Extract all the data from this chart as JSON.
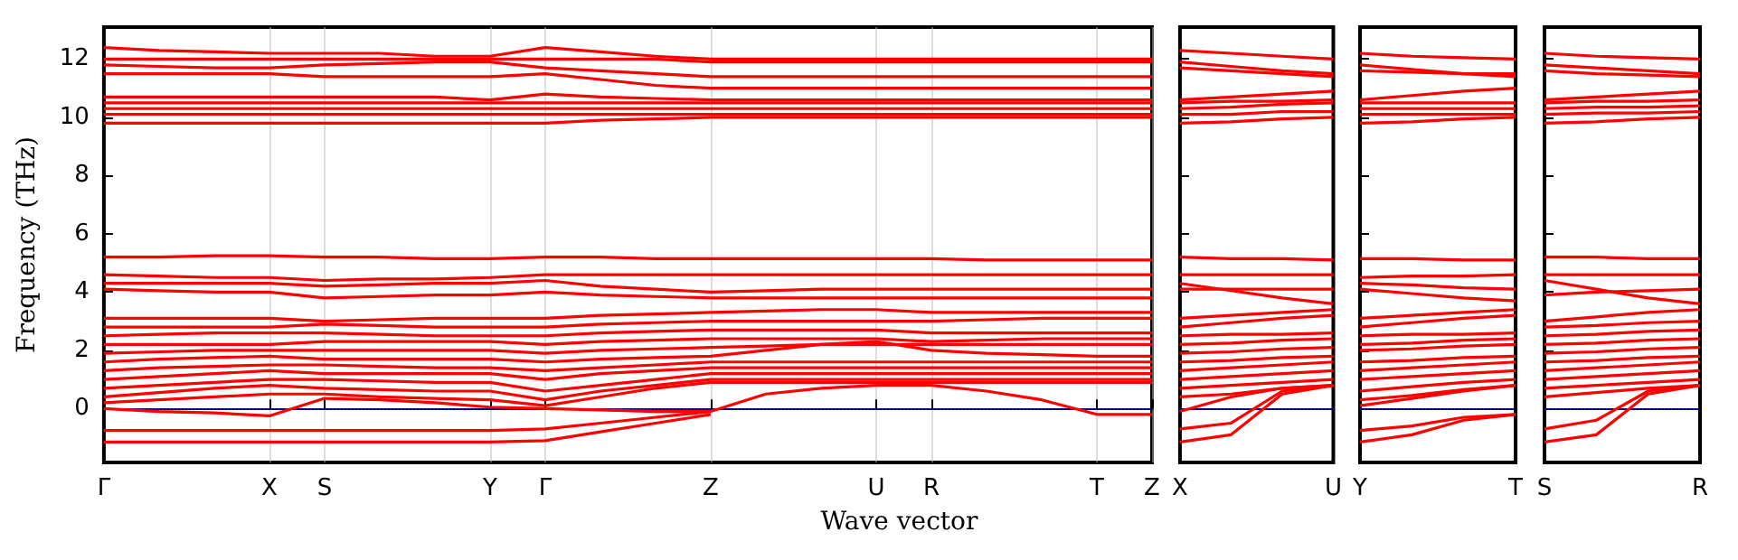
{
  "chart_data": [
    {
      "type": "line",
      "xlabel": "Wave vector",
      "ylabel": "Frequency (THz)",
      "grid": "x",
      "marker": "none",
      "categories": [
        "Γ",
        null,
        null,
        "X",
        "S",
        null,
        null,
        "Y",
        "Γ",
        null,
        null,
        "Z",
        null,
        null,
        "U",
        "R",
        null,
        null,
        "T",
        "Z"
      ],
      "ylim": [
        -1.85,
        13.1
      ],
      "yticks": [
        0,
        2,
        4,
        6,
        8,
        10,
        12
      ],
      "ref_lines": [
        {
          "axis": "y",
          "value": 0,
          "label": null,
          "color": "#0000ff",
          "line_style": "dotted"
        }
      ],
      "series": [
        {
          "color": "#ff0000",
          "values": [
            12.4,
            12.3,
            12.25,
            12.2,
            12.2,
            12.2,
            12.1,
            12.1,
            12.4,
            12.25,
            12.1,
            12.0,
            12.0,
            12.0,
            12.0,
            12.0,
            12.0,
            12.0,
            12.0,
            12.0
          ]
        },
        {
          "color": "#ff0000",
          "values": [
            12.0,
            12.0,
            12.0,
            12.0,
            12.0,
            12.0,
            12.0,
            12.0,
            12.0,
            12.0,
            12.0,
            11.9,
            11.9,
            11.9,
            11.9,
            11.9,
            11.9,
            11.9,
            11.9,
            11.9
          ]
        },
        {
          "color": "#ff0000",
          "values": [
            11.8,
            11.75,
            11.7,
            11.7,
            11.8,
            11.85,
            11.9,
            11.9,
            11.7,
            11.6,
            11.5,
            11.4,
            11.4,
            11.4,
            11.4,
            11.4,
            11.4,
            11.4,
            11.4,
            11.4
          ]
        },
        {
          "color": "#ff0000",
          "values": [
            11.5,
            11.5,
            11.5,
            11.5,
            11.4,
            11.4,
            11.4,
            11.4,
            11.5,
            11.3,
            11.1,
            11.0,
            11.0,
            11.0,
            11.0,
            11.0,
            11.0,
            11.0,
            11.0,
            11.0
          ]
        },
        {
          "color": "#ff0000",
          "values": [
            10.7,
            10.7,
            10.7,
            10.7,
            10.7,
            10.7,
            10.7,
            10.6,
            10.8,
            10.7,
            10.65,
            10.6,
            10.6,
            10.6,
            10.6,
            10.6,
            10.6,
            10.6,
            10.6,
            10.6
          ]
        },
        {
          "color": "#ff0000",
          "values": [
            10.5,
            10.5,
            10.5,
            10.5,
            10.5,
            10.5,
            10.5,
            10.5,
            10.5,
            10.5,
            10.5,
            10.5,
            10.5,
            10.5,
            10.5,
            10.5,
            10.5,
            10.5,
            10.5,
            10.5
          ]
        },
        {
          "color": "#ff0000",
          "values": [
            10.3,
            10.3,
            10.3,
            10.3,
            10.3,
            10.3,
            10.3,
            10.3,
            10.3,
            10.3,
            10.3,
            10.3,
            10.3,
            10.3,
            10.3,
            10.3,
            10.3,
            10.3,
            10.3,
            10.3
          ]
        },
        {
          "color": "#ff0000",
          "values": [
            10.1,
            10.1,
            10.1,
            10.1,
            10.1,
            10.1,
            10.1,
            10.1,
            10.1,
            10.1,
            10.1,
            10.1,
            10.1,
            10.1,
            10.1,
            10.1,
            10.1,
            10.1,
            10.1,
            10.1
          ]
        },
        {
          "color": "#ff0000",
          "values": [
            9.8,
            9.8,
            9.8,
            9.8,
            9.8,
            9.8,
            9.8,
            9.8,
            9.8,
            9.9,
            9.95,
            10.0,
            10.0,
            10.0,
            10.0,
            10.0,
            10.0,
            10.0,
            10.0,
            10.0
          ]
        },
        {
          "color": "#ff0000",
          "values": [
            5.2,
            5.2,
            5.25,
            5.25,
            5.2,
            5.2,
            5.15,
            5.15,
            5.2,
            5.2,
            5.15,
            5.15,
            5.15,
            5.15,
            5.15,
            5.15,
            5.1,
            5.1,
            5.1,
            5.1
          ]
        },
        {
          "color": "#ff0000",
          "values": [
            4.6,
            4.55,
            4.5,
            4.5,
            4.4,
            4.45,
            4.45,
            4.5,
            4.6,
            4.6,
            4.6,
            4.6,
            4.6,
            4.6,
            4.6,
            4.6,
            4.6,
            4.6,
            4.6,
            4.6
          ]
        },
        {
          "color": "#ff0000",
          "values": [
            4.3,
            4.3,
            4.3,
            4.3,
            4.2,
            4.25,
            4.3,
            4.3,
            4.4,
            4.2,
            4.1,
            4.0,
            4.05,
            4.1,
            4.1,
            4.1,
            4.1,
            4.1,
            4.1,
            4.1
          ]
        },
        {
          "color": "#ff0000",
          "values": [
            4.1,
            4.05,
            4.0,
            4.0,
            3.8,
            3.85,
            3.9,
            3.9,
            4.0,
            3.9,
            3.85,
            3.8,
            3.8,
            3.8,
            3.8,
            3.8,
            3.8,
            3.8,
            3.8,
            3.8
          ]
        },
        {
          "color": "#ff0000",
          "values": [
            3.1,
            3.1,
            3.1,
            3.1,
            3.0,
            3.05,
            3.1,
            3.1,
            3.1,
            3.2,
            3.25,
            3.3,
            3.35,
            3.4,
            3.4,
            3.3,
            3.3,
            3.3,
            3.3,
            3.3
          ]
        },
        {
          "color": "#ff0000",
          "values": [
            2.8,
            2.8,
            2.8,
            2.8,
            2.9,
            2.85,
            2.8,
            2.8,
            2.8,
            2.9,
            2.95,
            3.0,
            3.0,
            3.0,
            3.0,
            3.0,
            3.05,
            3.1,
            3.1,
            3.1
          ]
        },
        {
          "color": "#ff0000",
          "values": [
            2.5,
            2.55,
            2.6,
            2.6,
            2.6,
            2.55,
            2.5,
            2.5,
            2.5,
            2.6,
            2.65,
            2.7,
            2.7,
            2.7,
            2.7,
            2.6,
            2.6,
            2.6,
            2.6,
            2.6
          ]
        },
        {
          "color": "#ff0000",
          "values": [
            2.2,
            2.2,
            2.2,
            2.2,
            2.3,
            2.3,
            2.3,
            2.3,
            2.2,
            2.3,
            2.35,
            2.4,
            2.4,
            2.4,
            2.4,
            2.3,
            2.35,
            2.4,
            2.4,
            2.4
          ]
        },
        {
          "color": "#ff0000",
          "values": [
            1.9,
            1.95,
            2.0,
            2.0,
            2.0,
            2.0,
            2.0,
            2.0,
            1.9,
            2.0,
            2.05,
            2.1,
            2.15,
            2.2,
            2.2,
            2.2,
            2.2,
            2.2,
            2.2,
            2.2
          ]
        },
        {
          "color": "#ff0000",
          "values": [
            1.6,
            1.7,
            1.75,
            1.8,
            1.7,
            1.7,
            1.7,
            1.7,
            1.6,
            1.7,
            1.75,
            1.8,
            2.0,
            2.2,
            2.3,
            2.0,
            1.9,
            1.85,
            1.8,
            1.8
          ]
        },
        {
          "color": "#ff0000",
          "values": [
            1.3,
            1.4,
            1.45,
            1.5,
            1.5,
            1.45,
            1.4,
            1.4,
            1.3,
            1.4,
            1.5,
            1.6,
            1.6,
            1.6,
            1.6,
            1.6,
            1.6,
            1.6,
            1.6,
            1.6
          ]
        },
        {
          "color": "#ff0000",
          "values": [
            1.0,
            1.1,
            1.2,
            1.3,
            1.2,
            1.2,
            1.2,
            1.2,
            1.0,
            1.2,
            1.3,
            1.4,
            1.4,
            1.4,
            1.4,
            1.4,
            1.4,
            1.4,
            1.4,
            1.4
          ]
        },
        {
          "color": "#ff0000",
          "values": [
            0.7,
            0.8,
            0.9,
            1.0,
            1.0,
            0.95,
            0.9,
            0.9,
            0.6,
            0.8,
            1.0,
            1.2,
            1.2,
            1.2,
            1.2,
            1.2,
            1.2,
            1.2,
            1.2,
            1.2
          ]
        },
        {
          "color": "#ff0000",
          "values": [
            0.4,
            0.55,
            0.7,
            0.8,
            0.7,
            0.65,
            0.6,
            0.6,
            0.3,
            0.6,
            0.8,
            1.0,
            1.0,
            1.0,
            1.0,
            1.0,
            1.0,
            1.0,
            1.0,
            1.0
          ]
        },
        {
          "color": "#ff0000",
          "values": [
            0.2,
            0.3,
            0.4,
            0.5,
            0.5,
            0.4,
            0.35,
            0.3,
            0.1,
            0.4,
            0.7,
            0.9,
            0.9,
            0.9,
            0.9,
            0.9,
            0.9,
            0.9,
            0.9,
            0.9
          ]
        },
        {
          "color": "#ff0000",
          "values": [
            0,
            -0.1,
            -0.15,
            -0.25,
            0.35,
            0.3,
            0.2,
            0.05,
            0,
            -0.05,
            -0.1,
            -0.1,
            0.5,
            0.7,
            0.8,
            0.8,
            0.6,
            0.3,
            -0.2,
            -0.2
          ]
        },
        {
          "color": "#ff0000",
          "values": [
            -0.75,
            -0.75,
            -0.75,
            -0.75,
            -0.75,
            -0.75,
            -0.75,
            -0.75,
            -0.7,
            -0.5,
            -0.3,
            -0.1,
            null,
            null,
            null,
            null,
            null,
            null,
            null,
            null
          ]
        },
        {
          "color": "#ff0000",
          "values": [
            -1.15,
            -1.15,
            -1.15,
            -1.15,
            -1.15,
            -1.15,
            -1.15,
            -1.15,
            -1.1,
            -0.8,
            -0.5,
            -0.2,
            null,
            null,
            null,
            null,
            null,
            null,
            null,
            null
          ]
        }
      ]
    },
    {
      "type": "line",
      "marker": "none",
      "tick_labels": "x",
      "categories": [
        "X",
        null,
        null,
        "U"
      ],
      "ylim": [
        -1.85,
        13.1
      ],
      "yticks": [
        0,
        2,
        4,
        6,
        8,
        10,
        12
      ],
      "ref_lines": [
        {
          "axis": "y",
          "value": 0,
          "label": null,
          "color": "#0000ff",
          "line_style": "dotted"
        }
      ],
      "series": [
        {
          "color": "#ff0000",
          "values": [
            12.3,
            12.2,
            12.1,
            12.0
          ]
        },
        {
          "color": "#ff0000",
          "values": [
            11.9,
            11.75,
            11.6,
            11.5
          ]
        },
        {
          "color": "#ff0000",
          "values": [
            11.7,
            11.6,
            11.5,
            11.4
          ]
        },
        {
          "color": "#ff0000",
          "values": [
            10.6,
            10.7,
            10.8,
            10.9
          ]
        },
        {
          "color": "#ff0000",
          "values": [
            10.5,
            10.55,
            10.55,
            10.6
          ]
        },
        {
          "color": "#ff0000",
          "values": [
            10.3,
            10.35,
            10.45,
            10.5
          ]
        },
        {
          "color": "#ff0000",
          "values": [
            10.1,
            10.1,
            10.2,
            10.2
          ]
        },
        {
          "color": "#ff0000",
          "values": [
            9.8,
            9.85,
            9.95,
            10.0
          ]
        },
        {
          "color": "#ff0000",
          "values": [
            5.2,
            5.15,
            5.15,
            5.1
          ]
        },
        {
          "color": "#ff0000",
          "values": [
            4.6,
            4.6,
            4.6,
            4.6
          ]
        },
        {
          "color": "#ff0000",
          "values": [
            4.3,
            4.05,
            3.8,
            3.6
          ]
        },
        {
          "color": "#ff0000",
          "values": [
            4.1,
            4.1,
            4.1,
            4.1
          ]
        },
        {
          "color": "#ff0000",
          "values": [
            3.1,
            3.2,
            3.3,
            3.4
          ]
        },
        {
          "color": "#ff0000",
          "values": [
            2.8,
            2.95,
            3.1,
            3.2
          ]
        },
        {
          "color": "#ff0000",
          "values": [
            2.5,
            2.55,
            2.55,
            2.6
          ]
        },
        {
          "color": "#ff0000",
          "values": [
            2.2,
            2.25,
            2.35,
            2.4
          ]
        },
        {
          "color": "#ff0000",
          "values": [
            1.9,
            1.95,
            2.05,
            2.1
          ]
        },
        {
          "color": "#ff0000",
          "values": [
            1.6,
            1.65,
            1.75,
            1.8
          ]
        },
        {
          "color": "#ff0000",
          "values": [
            1.3,
            1.4,
            1.5,
            1.6
          ]
        },
        {
          "color": "#ff0000",
          "values": [
            1.0,
            1.1,
            1.2,
            1.3
          ]
        },
        {
          "color": "#ff0000",
          "values": [
            0.7,
            0.8,
            0.9,
            1.0
          ]
        },
        {
          "color": "#ff0000",
          "values": [
            0.4,
            0.5,
            0.7,
            0.8
          ]
        },
        {
          "color": "#ff0000",
          "values": [
            -0.1,
            0.4,
            0.7,
            0.8
          ]
        },
        {
          "color": "#ff0000",
          "values": [
            -0.7,
            -0.5,
            0.6,
            0.8
          ]
        },
        {
          "color": "#ff0000",
          "values": [
            -1.15,
            -0.9,
            0.5,
            0.8
          ]
        }
      ]
    },
    {
      "type": "line",
      "marker": "none",
      "tick_labels": "x",
      "categories": [
        "Y",
        null,
        null,
        "T"
      ],
      "ylim": [
        -1.85,
        13.1
      ],
      "yticks": [
        0,
        2,
        4,
        6,
        8,
        10,
        12
      ],
      "ref_lines": [
        {
          "axis": "y",
          "value": 0,
          "label": null,
          "color": "#0000ff",
          "line_style": "dotted"
        }
      ],
      "series": [
        {
          "color": "#ff0000",
          "values": [
            12.2,
            12.1,
            12.05,
            12.0
          ]
        },
        {
          "color": "#ff0000",
          "values": [
            11.8,
            11.65,
            11.5,
            11.4
          ]
        },
        {
          "color": "#ff0000",
          "values": [
            11.6,
            11.55,
            11.5,
            11.5
          ]
        },
        {
          "color": "#ff0000",
          "values": [
            10.6,
            10.75,
            10.9,
            11.0
          ]
        },
        {
          "color": "#ff0000",
          "values": [
            10.5,
            10.5,
            10.5,
            10.5
          ]
        },
        {
          "color": "#ff0000",
          "values": [
            10.3,
            10.3,
            10.3,
            10.3
          ]
        },
        {
          "color": "#ff0000",
          "values": [
            10.1,
            10.1,
            10.1,
            10.1
          ]
        },
        {
          "color": "#ff0000",
          "values": [
            9.8,
            9.85,
            9.95,
            10.0
          ]
        },
        {
          "color": "#ff0000",
          "values": [
            5.15,
            5.15,
            5.1,
            5.1
          ]
        },
        {
          "color": "#ff0000",
          "values": [
            4.5,
            4.55,
            4.55,
            4.6
          ]
        },
        {
          "color": "#ff0000",
          "values": [
            4.3,
            4.25,
            4.15,
            4.1
          ]
        },
        {
          "color": "#ff0000",
          "values": [
            4.1,
            3.95,
            3.8,
            3.7
          ]
        },
        {
          "color": "#ff0000",
          "values": [
            3.1,
            3.2,
            3.3,
            3.4
          ]
        },
        {
          "color": "#ff0000",
          "values": [
            2.8,
            2.95,
            3.1,
            3.2
          ]
        },
        {
          "color": "#ff0000",
          "values": [
            2.5,
            2.55,
            2.55,
            2.6
          ]
        },
        {
          "color": "#ff0000",
          "values": [
            2.2,
            2.25,
            2.35,
            2.4
          ]
        },
        {
          "color": "#ff0000",
          "values": [
            2.0,
            2.05,
            2.15,
            2.2
          ]
        },
        {
          "color": "#ff0000",
          "values": [
            1.6,
            1.65,
            1.75,
            1.8
          ]
        },
        {
          "color": "#ff0000",
          "values": [
            1.3,
            1.4,
            1.5,
            1.6
          ]
        },
        {
          "color": "#ff0000",
          "values": [
            1.0,
            1.1,
            1.2,
            1.3
          ]
        },
        {
          "color": "#ff0000",
          "values": [
            0.6,
            0.75,
            0.9,
            1.0
          ]
        },
        {
          "color": "#ff0000",
          "values": [
            0.3,
            0.45,
            0.65,
            0.8
          ]
        },
        {
          "color": "#ff0000",
          "values": [
            0.1,
            0.35,
            0.6,
            0.8
          ]
        },
        {
          "color": "#ff0000",
          "values": [
            -0.75,
            -0.6,
            -0.3,
            -0.2
          ]
        },
        {
          "color": "#ff0000",
          "values": [
            -1.15,
            -0.9,
            -0.4,
            -0.2
          ]
        }
      ]
    },
    {
      "type": "line",
      "marker": "none",
      "tick_labels": "x",
      "categories": [
        "S",
        null,
        null,
        "R"
      ],
      "ylim": [
        -1.85,
        13.1
      ],
      "yticks": [
        0,
        2,
        4,
        6,
        8,
        10,
        12
      ],
      "ref_lines": [
        {
          "axis": "y",
          "value": 0,
          "label": null,
          "color": "#0000ff",
          "line_style": "dotted"
        }
      ],
      "series": [
        {
          "color": "#ff0000",
          "values": [
            12.2,
            12.1,
            12.05,
            12.0
          ]
        },
        {
          "color": "#ff0000",
          "values": [
            11.8,
            11.7,
            11.6,
            11.5
          ]
        },
        {
          "color": "#ff0000",
          "values": [
            11.6,
            11.5,
            11.45,
            11.4
          ]
        },
        {
          "color": "#ff0000",
          "values": [
            10.6,
            10.7,
            10.8,
            10.9
          ]
        },
        {
          "color": "#ff0000",
          "values": [
            10.5,
            10.55,
            10.55,
            10.6
          ]
        },
        {
          "color": "#ff0000",
          "values": [
            10.3,
            10.35,
            10.35,
            10.4
          ]
        },
        {
          "color": "#ff0000",
          "values": [
            10.1,
            10.15,
            10.15,
            10.2
          ]
        },
        {
          "color": "#ff0000",
          "values": [
            9.8,
            9.85,
            9.95,
            10.0
          ]
        },
        {
          "color": "#ff0000",
          "values": [
            5.2,
            5.2,
            5.15,
            5.15
          ]
        },
        {
          "color": "#ff0000",
          "values": [
            4.6,
            4.6,
            4.6,
            4.6
          ]
        },
        {
          "color": "#ff0000",
          "values": [
            4.4,
            4.1,
            3.8,
            3.6
          ]
        },
        {
          "color": "#ff0000",
          "values": [
            3.9,
            4.0,
            4.05,
            4.1
          ]
        },
        {
          "color": "#ff0000",
          "values": [
            3.0,
            3.15,
            3.3,
            3.4
          ]
        },
        {
          "color": "#ff0000",
          "values": [
            2.8,
            2.85,
            2.95,
            3.0
          ]
        },
        {
          "color": "#ff0000",
          "values": [
            2.5,
            2.55,
            2.65,
            2.7
          ]
        },
        {
          "color": "#ff0000",
          "values": [
            2.2,
            2.25,
            2.35,
            2.4
          ]
        },
        {
          "color": "#ff0000",
          "values": [
            1.9,
            1.95,
            2.05,
            2.1
          ]
        },
        {
          "color": "#ff0000",
          "values": [
            1.6,
            1.65,
            1.75,
            1.8
          ]
        },
        {
          "color": "#ff0000",
          "values": [
            1.3,
            1.4,
            1.5,
            1.6
          ]
        },
        {
          "color": "#ff0000",
          "values": [
            1.0,
            1.1,
            1.2,
            1.3
          ]
        },
        {
          "color": "#ff0000",
          "values": [
            0.7,
            0.8,
            0.9,
            1.0
          ]
        },
        {
          "color": "#ff0000",
          "values": [
            0.4,
            0.55,
            0.7,
            0.8
          ]
        },
        {
          "color": "#ff0000",
          "values": [
            -0.7,
            -0.4,
            0.6,
            0.8
          ]
        },
        {
          "color": "#ff0000",
          "values": [
            -1.15,
            -0.9,
            0.5,
            0.8
          ]
        }
      ]
    }
  ]
}
